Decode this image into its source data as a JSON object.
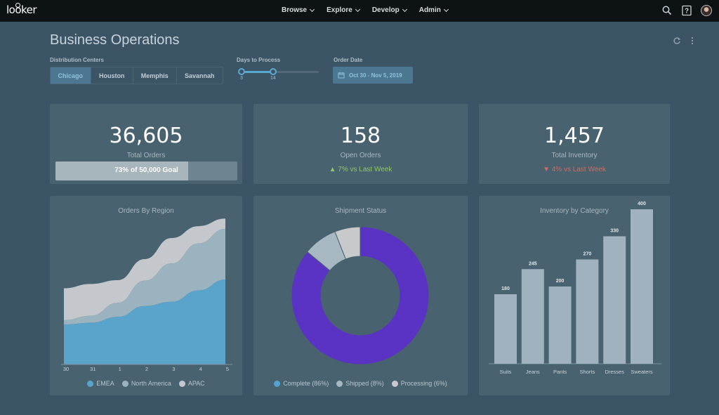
{
  "nav": {
    "logo": "looker",
    "menu": [
      {
        "label": "Browse"
      },
      {
        "label": "Explore"
      },
      {
        "label": "Develop"
      },
      {
        "label": "Admin"
      }
    ]
  },
  "header": {
    "title": "Business Operations"
  },
  "filters": {
    "distribution_centers": {
      "label": "Distribution Centers",
      "options": [
        "Chicago",
        "Houston",
        "Memphis",
        "Savannah"
      ],
      "selected": "Chicago"
    },
    "days_to_process": {
      "label": "Days to Process",
      "min_value": "3",
      "max_value": "14"
    },
    "order_date": {
      "label": "Order Date",
      "value": "Oct 30 - Nov 5, 2019"
    }
  },
  "kpis": {
    "total_orders": {
      "value": "36,605",
      "label": "Total Orders",
      "progress_text": "73% of 50,000 Goal",
      "progress_fraction": 0.73
    },
    "open_orders": {
      "value": "158",
      "label": "Open Orders",
      "delta_text": "7% vs Last Week",
      "delta_arrow": "▲"
    },
    "total_inventory": {
      "value": "1,457",
      "label": "Total Inventory",
      "delta_text": "4% vs Last Week",
      "delta_arrow": "▼"
    }
  },
  "colors": {
    "emea": "#5aa3cb",
    "north_america": "#9bb2bf",
    "apac": "#c4c8cc",
    "complete": "#5b33c4",
    "shipped": "#a8b8c2",
    "processing": "#c8c9cb",
    "bar": "#a0b2bd",
    "up": "#8fc76b",
    "down": "#d46a5e",
    "legend_complete": "#4fa3d1"
  },
  "chart_data": [
    {
      "type": "area",
      "title": "Orders By Region",
      "stacked": true,
      "x": [
        "30",
        "31",
        "1",
        "2",
        "3",
        "4",
        "5"
      ],
      "series": [
        {
          "name": "EMEA",
          "values": [
            74,
            77,
            88,
            108,
            116,
            137,
            157
          ]
        },
        {
          "name": "North America",
          "values": [
            8,
            13,
            26,
            47,
            71,
            87,
            94
          ]
        },
        {
          "name": "APAC",
          "values": [
            59,
            59,
            42,
            40,
            47,
            32,
            19
          ]
        }
      ],
      "ylim": [
        0,
        260
      ],
      "legend": "bottom"
    },
    {
      "type": "pie",
      "title": "Shipment Status",
      "donut": true,
      "slices": [
        {
          "name": "Complete (86%)",
          "value": 86
        },
        {
          "name": "Shipped (8%)",
          "value": 8
        },
        {
          "name": "Processing (6%)",
          "value": 6
        }
      ],
      "legend": "bottom"
    },
    {
      "type": "bar",
      "title": "Inventory by Category",
      "categories": [
        "Suits",
        "Jeans",
        "Pants",
        "Shorts",
        "Dresses",
        "Sweaters"
      ],
      "values": [
        180,
        245,
        200,
        270,
        330,
        400
      ],
      "ylim": [
        0,
        420
      ]
    }
  ]
}
